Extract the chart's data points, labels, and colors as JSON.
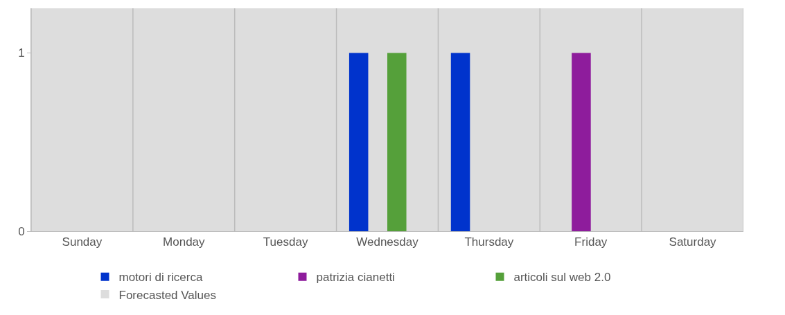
{
  "chart_data": {
    "type": "bar",
    "categories": [
      "Sunday",
      "Monday",
      "Tuesday",
      "Wednesday",
      "Thursday",
      "Friday",
      "Saturday"
    ],
    "series": [
      {
        "name": "motori di ricerca",
        "color": "#0033cc",
        "values": [
          0,
          0,
          0,
          1,
          1,
          0,
          null
        ]
      },
      {
        "name": "patrizia cianetti",
        "color": "#8e1c9c",
        "values": [
          0,
          0,
          0,
          0,
          0,
          1,
          null
        ]
      },
      {
        "name": "articoli sul web 2.0",
        "color": "#55a03a",
        "values": [
          0,
          0,
          0,
          1,
          0,
          0,
          null
        ]
      },
      {
        "name": "Forecasted Values",
        "color": "#dddddd",
        "values": [
          null,
          null,
          null,
          null,
          null,
          null,
          null
        ]
      }
    ],
    "ylim": [
      0,
      1.25
    ],
    "yticks": [
      0,
      1
    ],
    "grid": "x",
    "legend": "bottom"
  }
}
